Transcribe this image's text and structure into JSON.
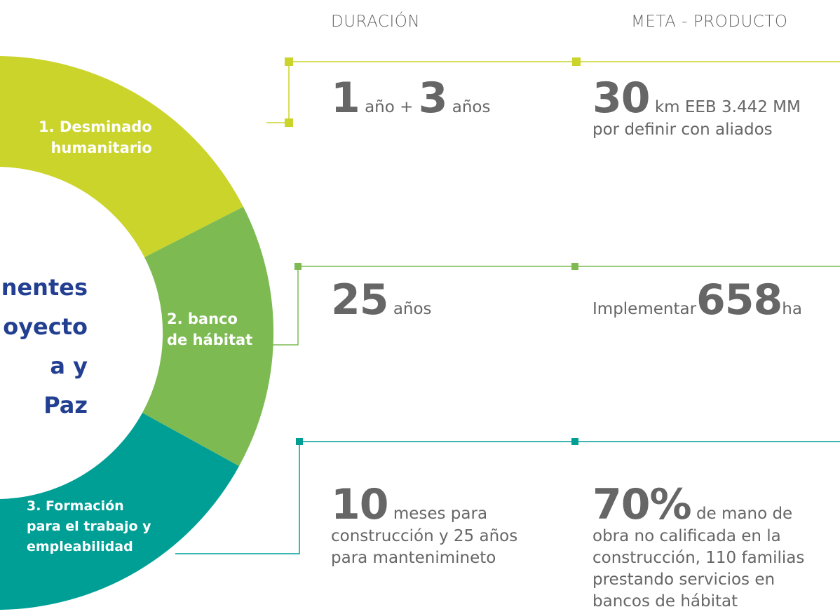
{
  "headers": {
    "duration": "DURACIÓN",
    "goal": "META - PRODUCTO"
  },
  "center_text": [
    "nentes",
    "oyecto",
    "a y Paz"
  ],
  "segments": [
    {
      "label": [
        "1. Desminado",
        "humanitario"
      ]
    },
    {
      "label": [
        "2. banco",
        "de hábitat"
      ]
    },
    {
      "label": [
        "3. Formación",
        "para el trabajo y",
        "empleabilidad"
      ]
    }
  ],
  "rows": [
    {
      "duration": {
        "big1": "1",
        "small1": "año +",
        "big2": "3",
        "small2": "años"
      },
      "goal": {
        "big": "30",
        "small": "km EEB 3.442 MM",
        "lines": [
          "por definir con aliados"
        ]
      }
    },
    {
      "duration": {
        "big1": "25",
        "small1": "años"
      },
      "goal": {
        "pre": "Implementar",
        "big": "658",
        "small": "ha"
      }
    },
    {
      "duration": {
        "big1": "10",
        "small1": "meses para",
        "lines": [
          "construcción y 25 años",
          "para mantenimineto"
        ]
      },
      "goal": {
        "big": "70%",
        "small": "de mano de",
        "lines": [
          "obra no calificada en la",
          "construcción, 110 familias",
          "prestando servicios en",
          "bancos de hábitat"
        ]
      }
    }
  ]
}
